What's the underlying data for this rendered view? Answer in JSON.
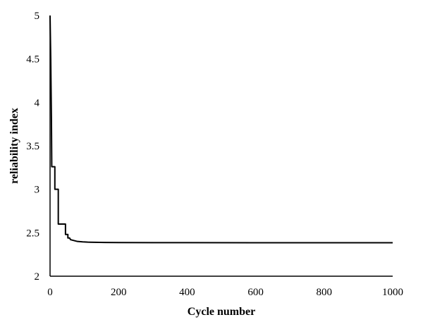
{
  "chart_data": {
    "type": "line",
    "title": "",
    "xlabel": "Cycle number",
    "ylabel": "reliability index",
    "xlim": [
      0,
      1000
    ],
    "ylim": [
      2,
      5
    ],
    "xticks": [
      0,
      200,
      400,
      600,
      800,
      1000
    ],
    "yticks": [
      2,
      2.5,
      3,
      3.5,
      4,
      4.5,
      5
    ],
    "xtick_labels": [
      "0",
      "200",
      "400",
      "600",
      "800",
      "1000"
    ],
    "ytick_labels": [
      "2",
      "2.5",
      "3",
      "3.5",
      "4",
      "4.5",
      "5"
    ],
    "grid": false,
    "legend": "none",
    "series": [
      {
        "color": "#000000",
        "x": [
          0,
          2,
          4,
          5,
          5,
          14,
          14,
          24,
          24,
          45,
          45,
          52,
          52,
          57,
          60,
          70,
          80,
          95,
          110,
          130,
          160,
          200,
          300,
          400,
          600,
          800,
          1000
        ],
        "y": [
          5.0,
          4.5,
          3.8,
          3.26,
          3.26,
          3.26,
          3.0,
          3.0,
          2.6,
          2.6,
          2.48,
          2.48,
          2.44,
          2.44,
          2.42,
          2.41,
          2.4,
          2.395,
          2.392,
          2.39,
          2.388,
          2.387,
          2.386,
          2.386,
          2.385,
          2.385,
          2.385
        ]
      }
    ]
  }
}
